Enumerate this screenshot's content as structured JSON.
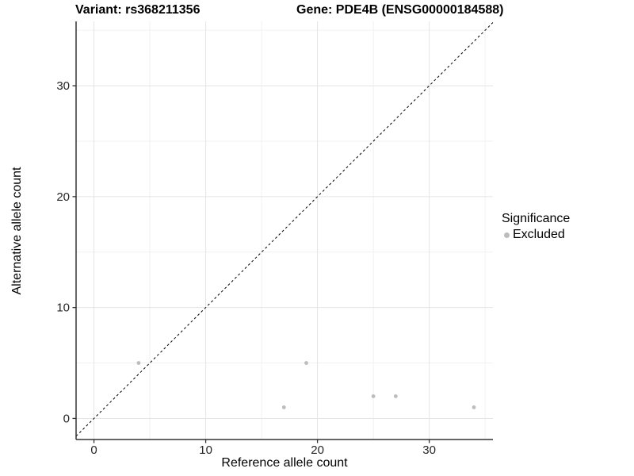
{
  "header": {
    "variant_title": "Variant: rs368211356",
    "gene_title": "Gene: PDE4B (ENSG00000184588)"
  },
  "chart_data": {
    "type": "scatter",
    "title_left": "Variant: rs368211356",
    "title_right": "Gene: PDE4B (ENSG00000184588)",
    "xlabel": "Reference allele count",
    "ylabel": "Alternative allele count",
    "series": [
      {
        "name": "Excluded",
        "color": "#bcbcbc",
        "points": [
          [
            4,
            5
          ],
          [
            17,
            1
          ],
          [
            19,
            5
          ],
          [
            25,
            2
          ],
          [
            27,
            2
          ],
          [
            34,
            1
          ]
        ]
      }
    ],
    "reference_line": {
      "equation": "y = x",
      "style": "dashed",
      "color": "#000000"
    },
    "x_ticks": [
      0,
      10,
      20,
      30
    ],
    "y_ticks": [
      0,
      10,
      20,
      30
    ],
    "x_minor_ticks": [
      5,
      15,
      25,
      35
    ],
    "y_minor_ticks": [
      5,
      15,
      25,
      35
    ],
    "xlim": [
      -1.6,
      35.7
    ],
    "ylim": [
      -1.9,
      35.8
    ],
    "grid": true,
    "legend": {
      "title": "Significance",
      "position": "right",
      "items": [
        {
          "label": "Excluded",
          "color": "#bcbcbc"
        }
      ]
    }
  },
  "colors": {
    "background": "#ffffff",
    "grid_major": "#e4e4e4",
    "grid_minor": "#f1f1f1",
    "axis_line": "#333333",
    "tick_mark": "#333333",
    "tick_label": "#262626",
    "point": "#bcbcbc",
    "ref_line": "#000000"
  }
}
